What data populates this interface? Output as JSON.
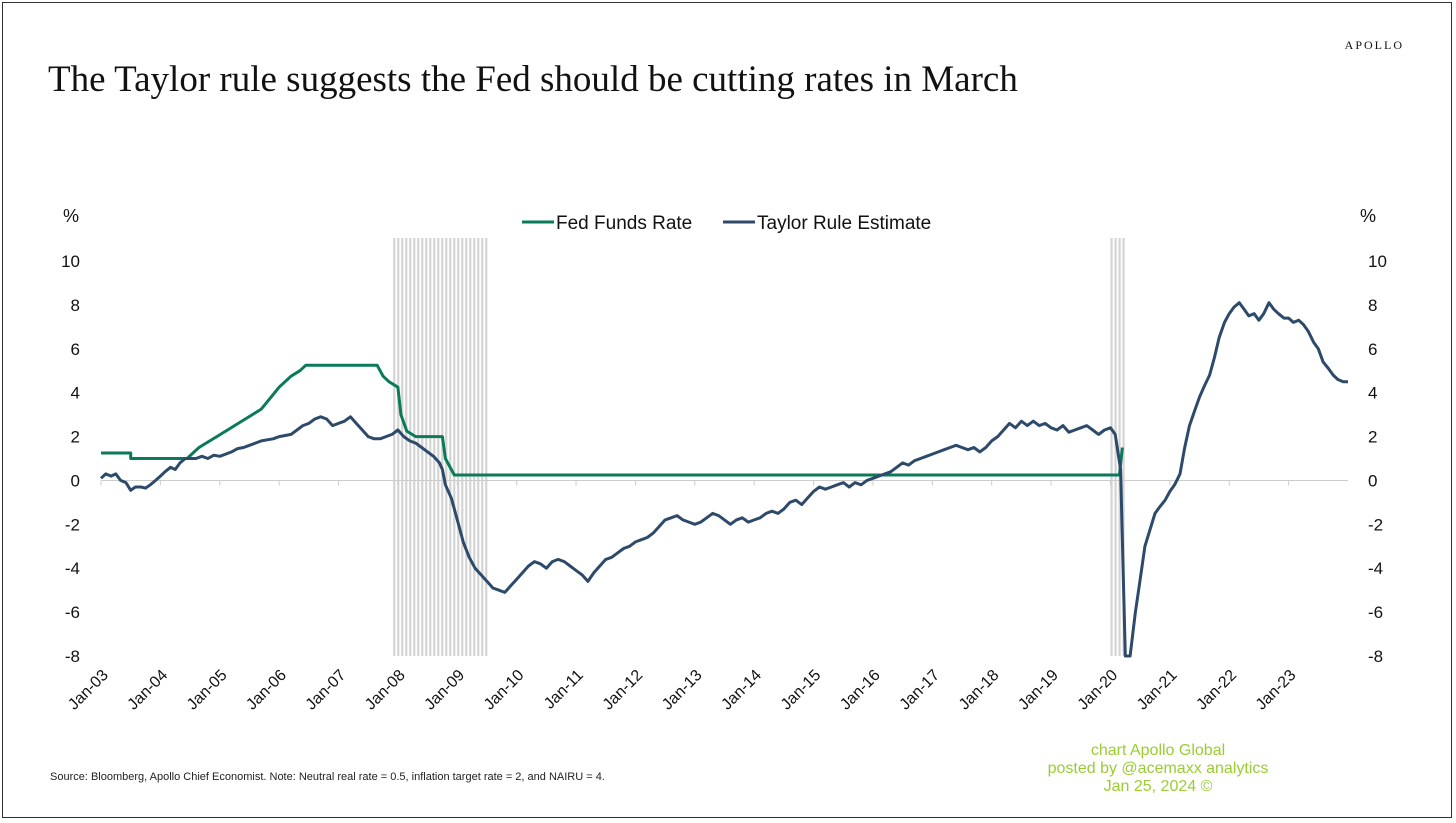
{
  "header": {
    "brand": "APOLLO",
    "title": "The Taylor rule suggests the Fed should be cutting rates in March"
  },
  "footer": {
    "source": "Source: Bloomberg, Apollo Chief Economist. Note: Neutral real rate = 0.5, inflation target rate = 2, and NAIRU = 4."
  },
  "watermark": {
    "line1": "chart Apollo Global",
    "line2": "posted by @acemaxx analytics",
    "line3": "Jan 25, 2024 ©"
  },
  "colors": {
    "fed_funds": "#0a7a5a",
    "taylor": "#2d4a6b",
    "recession": "#d4d4d4",
    "axis": "#cccccc",
    "text": "#111111"
  },
  "chart_data": {
    "type": "line",
    "ylabel_left": "%",
    "ylabel_right": "%",
    "ylim": [
      -8,
      10
    ],
    "yticks": [
      10,
      8,
      6,
      4,
      2,
      0,
      -2,
      -4,
      -6,
      -8
    ],
    "xlim": [
      2003.0,
      2024.0
    ],
    "xticks": [
      "Jan-03",
      "Jan-04",
      "Jan-05",
      "Jan-06",
      "Jan-07",
      "Jan-08",
      "Jan-09",
      "Jan-10",
      "Jan-11",
      "Jan-12",
      "Jan-13",
      "Jan-14",
      "Jan-15",
      "Jan-16",
      "Jan-17",
      "Jan-18",
      "Jan-19",
      "Jan-20",
      "Jan-21",
      "Jan-22",
      "Jan-23"
    ],
    "legend_position": "top-center",
    "recessions": [
      [
        2007.92,
        2009.5
      ],
      [
        2020.0,
        2020.25
      ]
    ],
    "series": [
      {
        "name": "Fed Funds Rate",
        "color": "#0a7a5a",
        "points": [
          [
            2003.0,
            1.25
          ],
          [
            2003.5,
            1.25
          ],
          [
            2003.5,
            1.0
          ],
          [
            2004.45,
            1.0
          ],
          [
            2004.55,
            1.25
          ],
          [
            2004.65,
            1.5
          ],
          [
            2004.8,
            1.75
          ],
          [
            2004.95,
            2.0
          ],
          [
            2005.1,
            2.25
          ],
          [
            2005.25,
            2.5
          ],
          [
            2005.4,
            2.75
          ],
          [
            2005.55,
            3.0
          ],
          [
            2005.7,
            3.25
          ],
          [
            2005.85,
            3.75
          ],
          [
            2006.0,
            4.25
          ],
          [
            2006.2,
            4.75
          ],
          [
            2006.35,
            5.0
          ],
          [
            2006.45,
            5.25
          ],
          [
            2007.65,
            5.25
          ],
          [
            2007.75,
            4.75
          ],
          [
            2007.85,
            4.5
          ],
          [
            2008.0,
            4.25
          ],
          [
            2008.05,
            3.0
          ],
          [
            2008.15,
            2.25
          ],
          [
            2008.3,
            2.0
          ],
          [
            2008.75,
            2.0
          ],
          [
            2008.8,
            1.0
          ],
          [
            2008.95,
            0.25
          ],
          [
            2020.15,
            0.25
          ],
          [
            2020.2,
            1.5
          ]
        ]
      },
      {
        "name": "Taylor Rule Estimate",
        "color": "#2d4a6b",
        "points": [
          [
            2003.0,
            0.1
          ],
          [
            2003.08,
            0.3
          ],
          [
            2003.17,
            0.2
          ],
          [
            2003.25,
            0.3
          ],
          [
            2003.33,
            0.0
          ],
          [
            2003.42,
            -0.1
          ],
          [
            2003.5,
            -0.45
          ],
          [
            2003.58,
            -0.3
          ],
          [
            2003.67,
            -0.3
          ],
          [
            2003.75,
            -0.35
          ],
          [
            2003.83,
            -0.2
          ],
          [
            2003.92,
            0.0
          ],
          [
            2004.0,
            0.2
          ],
          [
            2004.08,
            0.4
          ],
          [
            2004.17,
            0.6
          ],
          [
            2004.25,
            0.5
          ],
          [
            2004.33,
            0.8
          ],
          [
            2004.42,
            1.0
          ],
          [
            2004.5,
            1.0
          ],
          [
            2004.6,
            1.0
          ],
          [
            2004.7,
            1.1
          ],
          [
            2004.8,
            1.0
          ],
          [
            2004.9,
            1.15
          ],
          [
            2005.0,
            1.1
          ],
          [
            2005.1,
            1.2
          ],
          [
            2005.2,
            1.3
          ],
          [
            2005.3,
            1.45
          ],
          [
            2005.4,
            1.5
          ],
          [
            2005.5,
            1.6
          ],
          [
            2005.6,
            1.7
          ],
          [
            2005.7,
            1.8
          ],
          [
            2005.8,
            1.85
          ],
          [
            2005.9,
            1.9
          ],
          [
            2006.0,
            2.0
          ],
          [
            2006.1,
            2.05
          ],
          [
            2006.2,
            2.1
          ],
          [
            2006.3,
            2.3
          ],
          [
            2006.4,
            2.5
          ],
          [
            2006.5,
            2.6
          ],
          [
            2006.6,
            2.8
          ],
          [
            2006.7,
            2.9
          ],
          [
            2006.8,
            2.8
          ],
          [
            2006.9,
            2.5
          ],
          [
            2007.0,
            2.6
          ],
          [
            2007.1,
            2.7
          ],
          [
            2007.2,
            2.9
          ],
          [
            2007.3,
            2.6
          ],
          [
            2007.4,
            2.3
          ],
          [
            2007.5,
            2.0
          ],
          [
            2007.6,
            1.9
          ],
          [
            2007.7,
            1.9
          ],
          [
            2007.8,
            2.0
          ],
          [
            2007.9,
            2.1
          ],
          [
            2008.0,
            2.3
          ],
          [
            2008.1,
            2.0
          ],
          [
            2008.2,
            1.8
          ],
          [
            2008.3,
            1.7
          ],
          [
            2008.4,
            1.5
          ],
          [
            2008.5,
            1.3
          ],
          [
            2008.6,
            1.1
          ],
          [
            2008.7,
            0.8
          ],
          [
            2008.75,
            0.5
          ],
          [
            2008.8,
            -0.2
          ],
          [
            2008.9,
            -0.8
          ],
          [
            2009.0,
            -1.8
          ],
          [
            2009.1,
            -2.8
          ],
          [
            2009.2,
            -3.5
          ],
          [
            2009.3,
            -4.0
          ],
          [
            2009.4,
            -4.3
          ],
          [
            2009.5,
            -4.6
          ],
          [
            2009.6,
            -4.9
          ],
          [
            2009.7,
            -5.0
          ],
          [
            2009.8,
            -5.1
          ],
          [
            2009.9,
            -4.8
          ],
          [
            2010.0,
            -4.5
          ],
          [
            2010.1,
            -4.2
          ],
          [
            2010.2,
            -3.9
          ],
          [
            2010.3,
            -3.7
          ],
          [
            2010.4,
            -3.8
          ],
          [
            2010.5,
            -4.0
          ],
          [
            2010.6,
            -3.7
          ],
          [
            2010.7,
            -3.6
          ],
          [
            2010.8,
            -3.7
          ],
          [
            2010.9,
            -3.9
          ],
          [
            2011.0,
            -4.1
          ],
          [
            2011.1,
            -4.3
          ],
          [
            2011.2,
            -4.6
          ],
          [
            2011.3,
            -4.2
          ],
          [
            2011.4,
            -3.9
          ],
          [
            2011.5,
            -3.6
          ],
          [
            2011.6,
            -3.5
          ],
          [
            2011.7,
            -3.3
          ],
          [
            2011.8,
            -3.1
          ],
          [
            2011.9,
            -3.0
          ],
          [
            2012.0,
            -2.8
          ],
          [
            2012.1,
            -2.7
          ],
          [
            2012.2,
            -2.6
          ],
          [
            2012.3,
            -2.4
          ],
          [
            2012.4,
            -2.1
          ],
          [
            2012.5,
            -1.8
          ],
          [
            2012.6,
            -1.7
          ],
          [
            2012.7,
            -1.6
          ],
          [
            2012.8,
            -1.8
          ],
          [
            2012.9,
            -1.9
          ],
          [
            2013.0,
            -2.0
          ],
          [
            2013.1,
            -1.9
          ],
          [
            2013.2,
            -1.7
          ],
          [
            2013.3,
            -1.5
          ],
          [
            2013.4,
            -1.6
          ],
          [
            2013.5,
            -1.8
          ],
          [
            2013.6,
            -2.0
          ],
          [
            2013.7,
            -1.8
          ],
          [
            2013.8,
            -1.7
          ],
          [
            2013.9,
            -1.9
          ],
          [
            2014.0,
            -1.8
          ],
          [
            2014.1,
            -1.7
          ],
          [
            2014.2,
            -1.5
          ],
          [
            2014.3,
            -1.4
          ],
          [
            2014.4,
            -1.5
          ],
          [
            2014.5,
            -1.3
          ],
          [
            2014.6,
            -1.0
          ],
          [
            2014.7,
            -0.9
          ],
          [
            2014.8,
            -1.1
          ],
          [
            2014.9,
            -0.8
          ],
          [
            2015.0,
            -0.5
          ],
          [
            2015.1,
            -0.3
          ],
          [
            2015.2,
            -0.4
          ],
          [
            2015.3,
            -0.3
          ],
          [
            2015.4,
            -0.2
          ],
          [
            2015.5,
            -0.1
          ],
          [
            2015.6,
            -0.3
          ],
          [
            2015.7,
            -0.1
          ],
          [
            2015.8,
            -0.2
          ],
          [
            2015.9,
            0.0
          ],
          [
            2016.0,
            0.1
          ],
          [
            2016.1,
            0.2
          ],
          [
            2016.2,
            0.3
          ],
          [
            2016.3,
            0.4
          ],
          [
            2016.4,
            0.6
          ],
          [
            2016.5,
            0.8
          ],
          [
            2016.6,
            0.7
          ],
          [
            2016.7,
            0.9
          ],
          [
            2016.8,
            1.0
          ],
          [
            2016.9,
            1.1
          ],
          [
            2017.0,
            1.2
          ],
          [
            2017.1,
            1.3
          ],
          [
            2017.2,
            1.4
          ],
          [
            2017.3,
            1.5
          ],
          [
            2017.4,
            1.6
          ],
          [
            2017.5,
            1.5
          ],
          [
            2017.6,
            1.4
          ],
          [
            2017.7,
            1.5
          ],
          [
            2017.8,
            1.3
          ],
          [
            2017.9,
            1.5
          ],
          [
            2018.0,
            1.8
          ],
          [
            2018.1,
            2.0
          ],
          [
            2018.2,
            2.3
          ],
          [
            2018.3,
            2.6
          ],
          [
            2018.4,
            2.4
          ],
          [
            2018.5,
            2.7
          ],
          [
            2018.6,
            2.5
          ],
          [
            2018.7,
            2.7
          ],
          [
            2018.8,
            2.5
          ],
          [
            2018.9,
            2.6
          ],
          [
            2019.0,
            2.4
          ],
          [
            2019.1,
            2.3
          ],
          [
            2019.2,
            2.5
          ],
          [
            2019.3,
            2.2
          ],
          [
            2019.4,
            2.3
          ],
          [
            2019.5,
            2.4
          ],
          [
            2019.6,
            2.5
          ],
          [
            2019.7,
            2.3
          ],
          [
            2019.8,
            2.1
          ],
          [
            2019.9,
            2.3
          ],
          [
            2020.0,
            2.4
          ],
          [
            2020.08,
            2.1
          ],
          [
            2020.17,
            0.5
          ],
          [
            2020.25,
            -8.0
          ],
          [
            2020.33,
            -8.0
          ],
          [
            2020.42,
            -6.0
          ],
          [
            2020.5,
            -4.5
          ],
          [
            2020.58,
            -3.0
          ],
          [
            2020.67,
            -2.2
          ],
          [
            2020.75,
            -1.5
          ],
          [
            2020.83,
            -1.2
          ],
          [
            2020.92,
            -0.9
          ],
          [
            2021.0,
            -0.5
          ],
          [
            2021.08,
            -0.2
          ],
          [
            2021.17,
            0.3
          ],
          [
            2021.25,
            1.5
          ],
          [
            2021.33,
            2.5
          ],
          [
            2021.42,
            3.2
          ],
          [
            2021.5,
            3.8
          ],
          [
            2021.58,
            4.3
          ],
          [
            2021.67,
            4.8
          ],
          [
            2021.75,
            5.6
          ],
          [
            2021.83,
            6.5
          ],
          [
            2021.92,
            7.2
          ],
          [
            2022.0,
            7.6
          ],
          [
            2022.08,
            7.9
          ],
          [
            2022.17,
            8.1
          ],
          [
            2022.25,
            7.8
          ],
          [
            2022.33,
            7.5
          ],
          [
            2022.42,
            7.6
          ],
          [
            2022.5,
            7.3
          ],
          [
            2022.58,
            7.6
          ],
          [
            2022.67,
            8.1
          ],
          [
            2022.75,
            7.8
          ],
          [
            2022.83,
            7.6
          ],
          [
            2022.92,
            7.4
          ],
          [
            2023.0,
            7.4
          ],
          [
            2023.08,
            7.2
          ],
          [
            2023.17,
            7.3
          ],
          [
            2023.25,
            7.1
          ],
          [
            2023.33,
            6.8
          ],
          [
            2023.42,
            6.3
          ],
          [
            2023.5,
            6.0
          ],
          [
            2023.58,
            5.4
          ],
          [
            2023.67,
            5.1
          ],
          [
            2023.75,
            4.8
          ],
          [
            2023.83,
            4.6
          ],
          [
            2023.92,
            4.5
          ],
          [
            2024.0,
            4.5
          ]
        ]
      }
    ]
  }
}
